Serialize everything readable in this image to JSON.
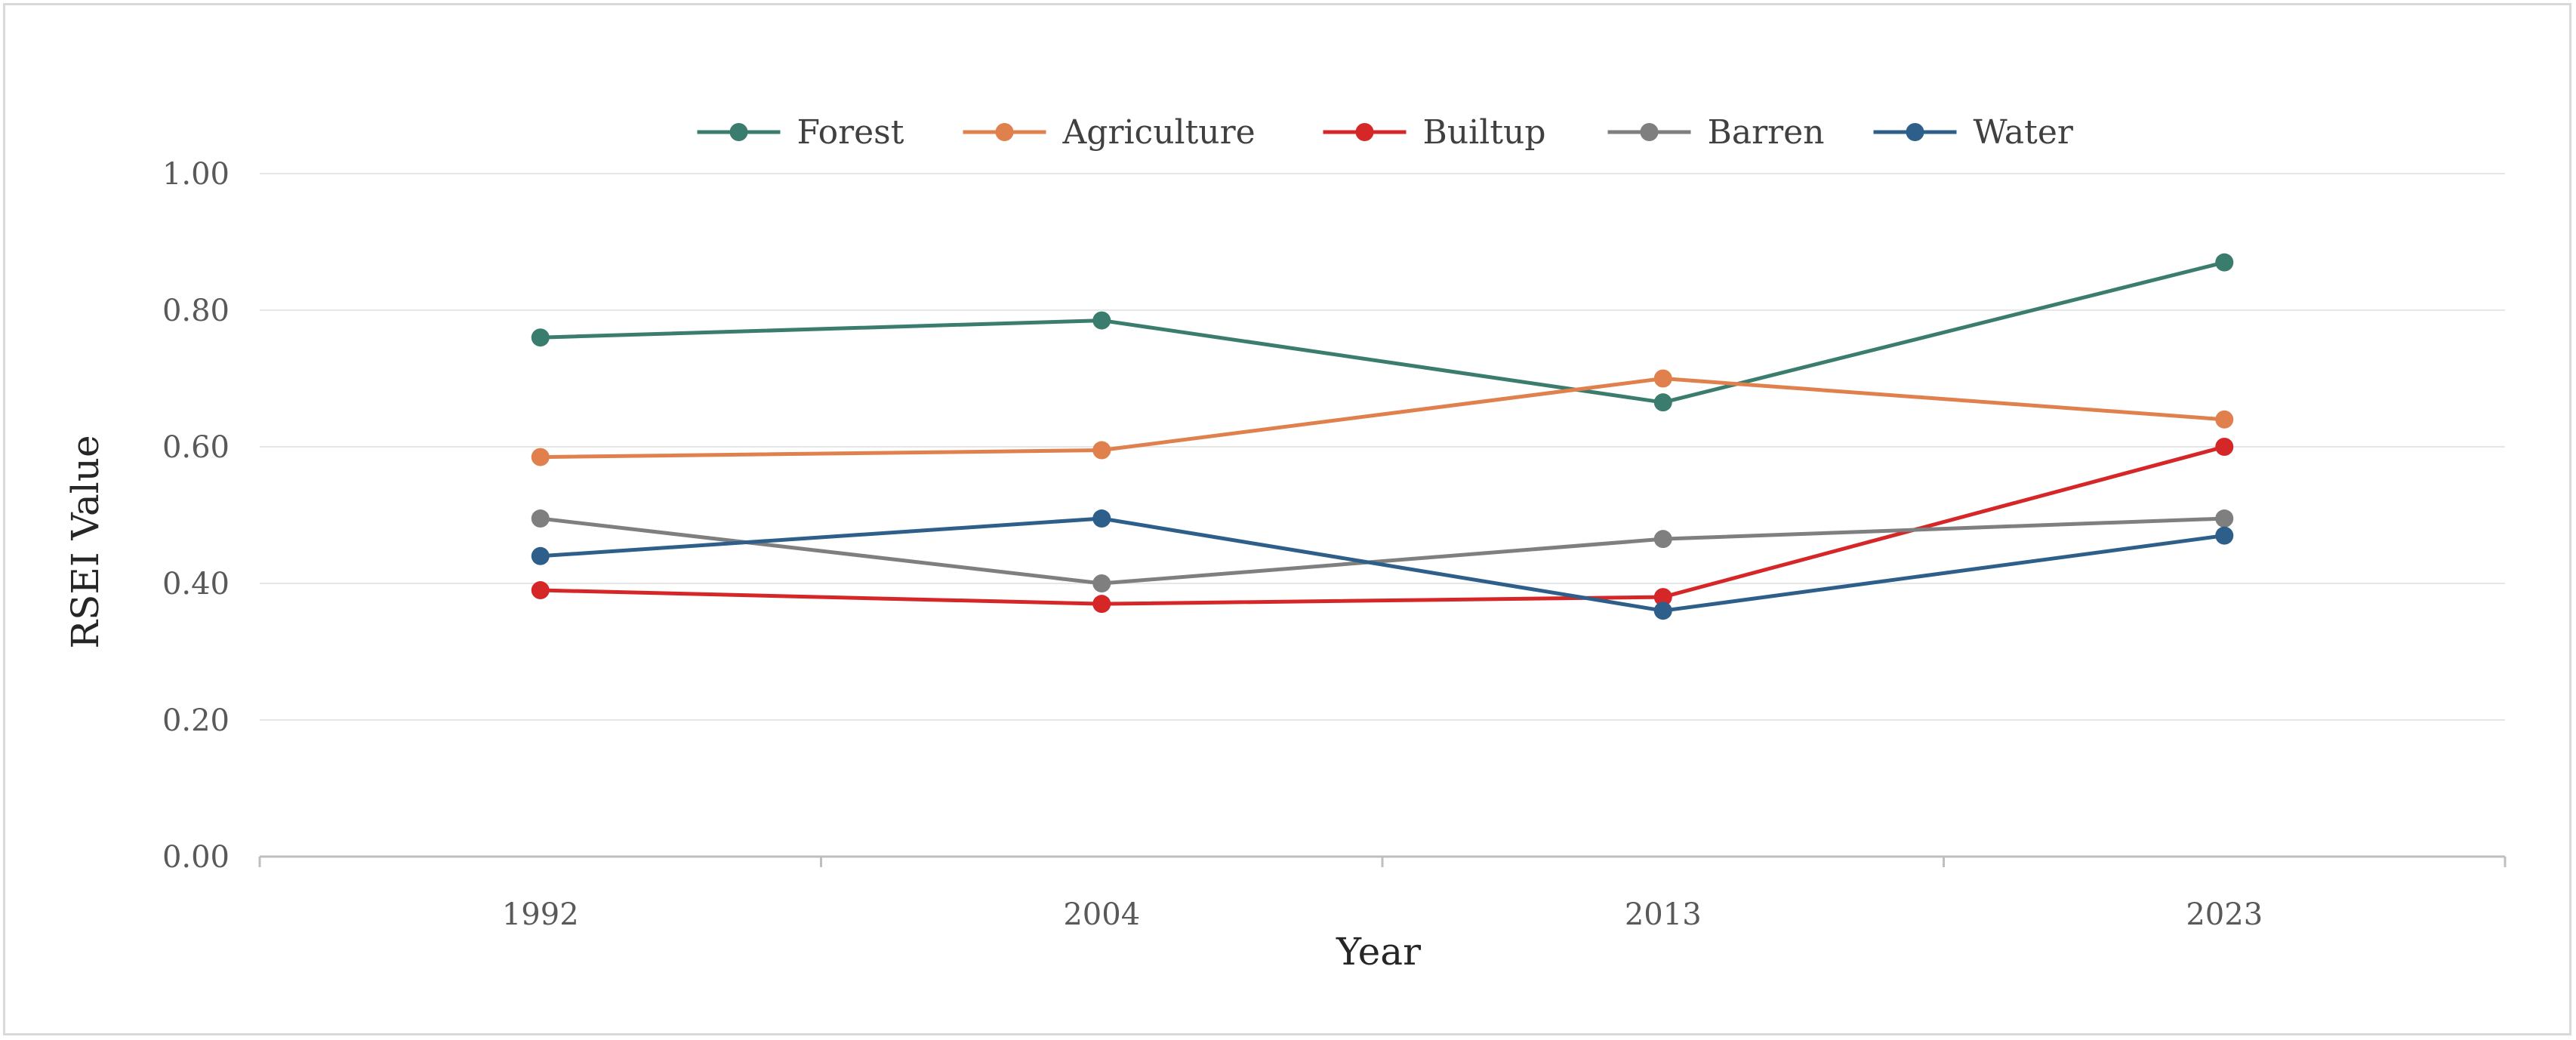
{
  "chart_data": {
    "type": "line",
    "categories": [
      "1992",
      "2004",
      "2013",
      "2023"
    ],
    "series": [
      {
        "name": "Forest",
        "color": "#3a7d6e",
        "values": [
          0.76,
          0.785,
          0.665,
          0.87
        ]
      },
      {
        "name": "Agriculture",
        "color": "#e0804d",
        "values": [
          0.585,
          0.595,
          0.7,
          0.64
        ]
      },
      {
        "name": "Builtup",
        "color": "#d62728",
        "values": [
          0.39,
          0.37,
          0.38,
          0.6
        ]
      },
      {
        "name": "Barren",
        "color": "#7f7f7f",
        "values": [
          0.495,
          0.4,
          0.465,
          0.495
        ]
      },
      {
        "name": "Water",
        "color": "#2e5f8a",
        "values": [
          0.44,
          0.495,
          0.36,
          0.47
        ]
      }
    ],
    "xlabel": "Year",
    "ylabel": "RSEI Value",
    "ylim": [
      0,
      1
    ],
    "yticks": [
      "0.00",
      "0.20",
      "0.40",
      "0.60",
      "0.80",
      "1.00"
    ],
    "grid": true,
    "legend": "top"
  }
}
